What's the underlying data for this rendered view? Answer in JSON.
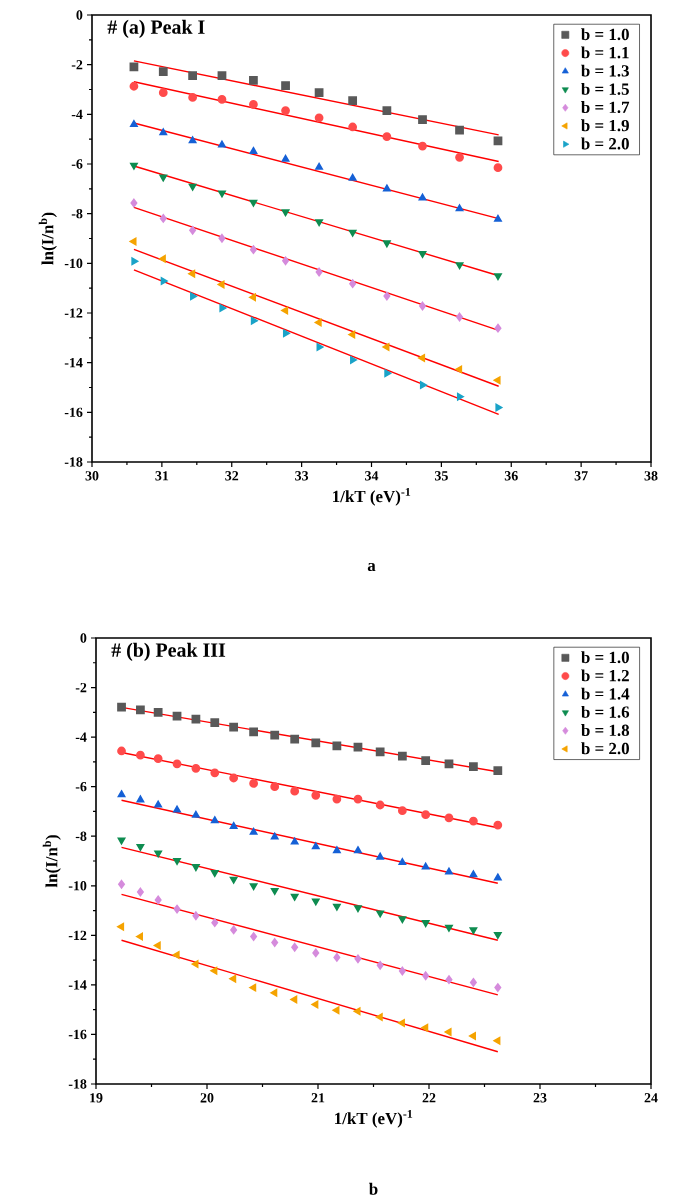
{
  "chart_data": [
    {
      "type": "scatter",
      "title": "# (a) Peak I",
      "xlabel": "1/kT (eV)$^{-1}$",
      "ylabel": "ln(I/n$^{b}$)",
      "annotations": [
        "a"
      ],
      "legend": "top right",
      "xlim": [
        30,
        38
      ],
      "ylim": [
        -18,
        0
      ],
      "xticks": [
        30,
        31,
        32,
        33,
        34,
        35,
        36,
        37,
        38
      ],
      "yticks": [
        -18,
        -16,
        -14,
        -12,
        -10,
        -8,
        -6,
        -4,
        -2,
        0
      ],
      "series": [
        {
          "name": "b = 1.0",
          "color": "#595959",
          "marker": "square",
          "x": [
            30.6,
            31.02,
            31.44,
            31.86,
            32.31,
            32.77,
            33.25,
            33.73,
            34.22,
            34.73,
            35.26,
            35.81
          ],
          "values": [
            -2.09,
            -2.28,
            -2.44,
            -2.44,
            -2.63,
            -2.84,
            -3.13,
            -3.45,
            -3.85,
            -4.21,
            -4.64,
            -5.07
          ]
        },
        {
          "name": "b = 1.1",
          "color": "#ff4b4b",
          "marker": "circle",
          "x": [
            30.6,
            31.02,
            31.44,
            31.86,
            32.31,
            32.77,
            33.25,
            33.73,
            34.22,
            34.73,
            35.26,
            35.81
          ],
          "values": [
            -2.87,
            -3.13,
            -3.32,
            -3.4,
            -3.6,
            -3.85,
            -4.14,
            -4.51,
            -4.9,
            -5.28,
            -5.73,
            -6.15
          ]
        },
        {
          "name": "b = 1.3",
          "color": "#1560d6",
          "marker": "triangle",
          "x": [
            30.6,
            31.02,
            31.44,
            31.86,
            32.31,
            32.77,
            33.25,
            33.73,
            34.22,
            34.73,
            35.26,
            35.81
          ],
          "values": [
            -4.41,
            -4.74,
            -5.06,
            -5.23,
            -5.49,
            -5.81,
            -6.13,
            -6.57,
            -7.0,
            -7.37,
            -7.8,
            -8.22
          ]
        },
        {
          "name": "b = 1.5",
          "color": "#0e8c50",
          "marker": "triangle-down",
          "x": [
            30.6,
            31.02,
            31.44,
            31.86,
            32.31,
            32.77,
            33.25,
            33.73,
            34.22,
            34.73,
            35.26,
            35.81
          ],
          "values": [
            -6.05,
            -6.53,
            -6.9,
            -7.17,
            -7.54,
            -7.93,
            -8.33,
            -8.75,
            -9.18,
            -9.61,
            -10.06,
            -10.5
          ]
        },
        {
          "name": "b = 1.7",
          "color": "#d58bdc",
          "marker": "diamond",
          "x": [
            30.6,
            31.02,
            31.44,
            31.86,
            32.31,
            32.77,
            33.25,
            33.73,
            34.22,
            34.73,
            35.26,
            35.81
          ],
          "values": [
            -7.57,
            -8.19,
            -8.67,
            -8.99,
            -9.45,
            -9.9,
            -10.35,
            -10.82,
            -11.32,
            -11.72,
            -12.16,
            -12.61
          ]
        },
        {
          "name": "b = 1.9",
          "color": "#f5a300",
          "marker": "triangle-left",
          "x": [
            30.6,
            31.02,
            31.44,
            31.86,
            32.31,
            32.77,
            33.25,
            33.73,
            34.22,
            34.73,
            35.26,
            35.81
          ],
          "values": [
            -9.12,
            -9.82,
            -10.42,
            -10.85,
            -11.37,
            -11.9,
            -12.38,
            -12.87,
            -13.37,
            -13.81,
            -14.27,
            -14.71
          ]
        },
        {
          "name": "b = 2.0",
          "color": "#1aa3c8",
          "marker": "triangle-right",
          "x": [
            30.6,
            31.02,
            31.44,
            31.86,
            32.31,
            32.77,
            33.25,
            33.73,
            34.22,
            34.73,
            35.26,
            35.81
          ],
          "values": [
            -9.92,
            -10.71,
            -11.33,
            -11.8,
            -12.31,
            -12.82,
            -13.37,
            -13.89,
            -14.43,
            -14.9,
            -15.37,
            -15.81
          ]
        },
        {
          "type": "line",
          "color": "#ff0000",
          "marker": "none",
          "x": [
            30.6,
            35.82
          ],
          "values": [
            -1.85,
            -4.83
          ]
        },
        {
          "type": "line",
          "color": "#ff0000",
          "marker": "none",
          "x": [
            30.6,
            35.82
          ],
          "values": [
            -2.69,
            -5.9
          ]
        },
        {
          "type": "line",
          "color": "#ff0000",
          "marker": "none",
          "x": [
            30.6,
            35.82
          ],
          "values": [
            -4.35,
            -8.2
          ]
        },
        {
          "type": "line",
          "color": "#ff0000",
          "marker": "none",
          "x": [
            30.6,
            35.82
          ],
          "values": [
            -6.08,
            -10.5
          ]
        },
        {
          "type": "line",
          "color": "#ff0000",
          "marker": "none",
          "x": [
            30.6,
            35.82
          ],
          "values": [
            -7.75,
            -12.7
          ]
        },
        {
          "type": "line",
          "color": "#ff0000",
          "marker": "none",
          "x": [
            30.6,
            35.82
          ],
          "values": [
            -9.44,
            -14.95
          ]
        },
        {
          "type": "line",
          "color": "#ff0000",
          "marker": "none",
          "x": [
            30.6,
            35.82
          ],
          "values": [
            -10.26,
            -16.08
          ]
        }
      ]
    },
    {
      "type": "scatter",
      "title": "# (b) Peak III",
      "xlabel": "1/kT (eV)$^{-1}$",
      "ylabel": "ln(I/n$^{b}$)",
      "annotations": [
        "b"
      ],
      "legend": "top right",
      "xlim": [
        19,
        24
      ],
      "ylim": [
        -18,
        0
      ],
      "xticks": [
        19,
        20,
        21,
        22,
        23,
        24
      ],
      "yticks": [
        -18,
        -16,
        -14,
        -12,
        -10,
        -8,
        -6,
        -4,
        -2,
        0
      ],
      "series": [
        {
          "name": "b = 1.0",
          "color": "#595959",
          "marker": "square",
          "x": [
            19.23,
            19.4,
            19.56,
            19.73,
            19.9,
            20.07,
            20.24,
            20.42,
            20.61,
            20.79,
            20.98,
            21.17,
            21.36,
            21.56,
            21.76,
            21.97,
            22.18,
            22.4,
            22.62
          ],
          "values": [
            -2.79,
            -2.9,
            -3.0,
            -3.15,
            -3.27,
            -3.42,
            -3.6,
            -3.79,
            -3.92,
            -4.08,
            -4.23,
            -4.35,
            -4.4,
            -4.6,
            -4.77,
            -4.95,
            -5.08,
            -5.19,
            -5.35
          ]
        },
        {
          "name": "b = 1.2",
          "color": "#ff4b4b",
          "marker": "circle",
          "x": [
            19.23,
            19.4,
            19.56,
            19.73,
            19.9,
            20.07,
            20.24,
            20.42,
            20.61,
            20.79,
            20.98,
            21.17,
            21.36,
            21.56,
            21.76,
            21.97,
            22.18,
            22.4,
            22.62
          ],
          "values": [
            -4.56,
            -4.73,
            -4.87,
            -5.08,
            -5.26,
            -5.44,
            -5.65,
            -5.87,
            -6.0,
            -6.18,
            -6.35,
            -6.5,
            -6.5,
            -6.74,
            -6.97,
            -7.13,
            -7.26,
            -7.39,
            -7.55
          ]
        },
        {
          "name": "b = 1.4",
          "color": "#1560d6",
          "marker": "triangle",
          "x": [
            19.23,
            19.4,
            19.56,
            19.73,
            19.9,
            20.07,
            20.24,
            20.42,
            20.61,
            20.79,
            20.98,
            21.17,
            21.36,
            21.56,
            21.76,
            21.97,
            22.18,
            22.4,
            22.62
          ],
          "values": [
            -6.32,
            -6.53,
            -6.74,
            -6.94,
            -7.15,
            -7.37,
            -7.6,
            -7.84,
            -8.03,
            -8.23,
            -8.42,
            -8.58,
            -8.58,
            -8.84,
            -9.06,
            -9.24,
            -9.44,
            -9.55,
            -9.68
          ]
        },
        {
          "name": "b = 1.6",
          "color": "#0e8c50",
          "marker": "triangle-down",
          "x": [
            19.23,
            19.4,
            19.56,
            19.73,
            19.9,
            20.07,
            20.24,
            20.42,
            20.61,
            20.79,
            20.98,
            21.17,
            21.36,
            21.56,
            21.76,
            21.97,
            22.18,
            22.4,
            22.62
          ],
          "values": [
            -8.16,
            -8.42,
            -8.68,
            -8.98,
            -9.23,
            -9.47,
            -9.74,
            -10.0,
            -10.19,
            -10.43,
            -10.62,
            -10.83,
            -10.89,
            -11.1,
            -11.33,
            -11.49,
            -11.68,
            -11.78,
            -11.97
          ]
        },
        {
          "name": "b = 1.8",
          "color": "#d58bdc",
          "marker": "diamond",
          "x": [
            19.23,
            19.4,
            19.56,
            19.73,
            19.9,
            20.07,
            20.24,
            20.42,
            20.61,
            20.79,
            20.98,
            21.17,
            21.36,
            21.56,
            21.76,
            21.97,
            22.18,
            22.4,
            22.62
          ],
          "values": [
            -9.94,
            -10.25,
            -10.57,
            -10.94,
            -11.21,
            -11.49,
            -11.78,
            -12.05,
            -12.29,
            -12.48,
            -12.71,
            -12.89,
            -12.95,
            -13.21,
            -13.44,
            -13.63,
            -13.79,
            -13.9,
            -14.11
          ]
        },
        {
          "name": "b = 2.0",
          "color": "#f5a300",
          "marker": "triangle-left",
          "x": [
            19.23,
            19.4,
            19.56,
            19.73,
            19.9,
            20.07,
            20.24,
            20.42,
            20.61,
            20.79,
            20.98,
            21.17,
            21.36,
            21.56,
            21.76,
            21.97,
            22.18,
            22.4,
            22.62
          ],
          "values": [
            -11.65,
            -12.05,
            -12.41,
            -12.79,
            -13.16,
            -13.43,
            -13.75,
            -14.11,
            -14.32,
            -14.59,
            -14.79,
            -15.02,
            -15.06,
            -15.3,
            -15.54,
            -15.73,
            -15.9,
            -16.06,
            -16.25
          ]
        },
        {
          "type": "line",
          "color": "#ff0000",
          "marker": "none",
          "x": [
            19.23,
            22.62
          ],
          "values": [
            -2.8,
            -5.4
          ]
        },
        {
          "type": "line",
          "color": "#ff0000",
          "marker": "none",
          "x": [
            19.23,
            22.62
          ],
          "values": [
            -4.62,
            -7.66
          ]
        },
        {
          "type": "line",
          "color": "#ff0000",
          "marker": "none",
          "x": [
            19.23,
            22.62
          ],
          "values": [
            -6.55,
            -9.9
          ]
        },
        {
          "type": "line",
          "color": "#ff0000",
          "marker": "none",
          "x": [
            19.23,
            22.62
          ],
          "values": [
            -8.45,
            -12.2
          ]
        },
        {
          "type": "line",
          "color": "#ff0000",
          "marker": "none",
          "x": [
            19.23,
            22.62
          ],
          "values": [
            -10.35,
            -14.4
          ]
        },
        {
          "type": "line",
          "color": "#ff0000",
          "marker": "none",
          "x": [
            19.23,
            22.62
          ],
          "values": [
            -12.2,
            -16.7
          ]
        }
      ]
    }
  ]
}
